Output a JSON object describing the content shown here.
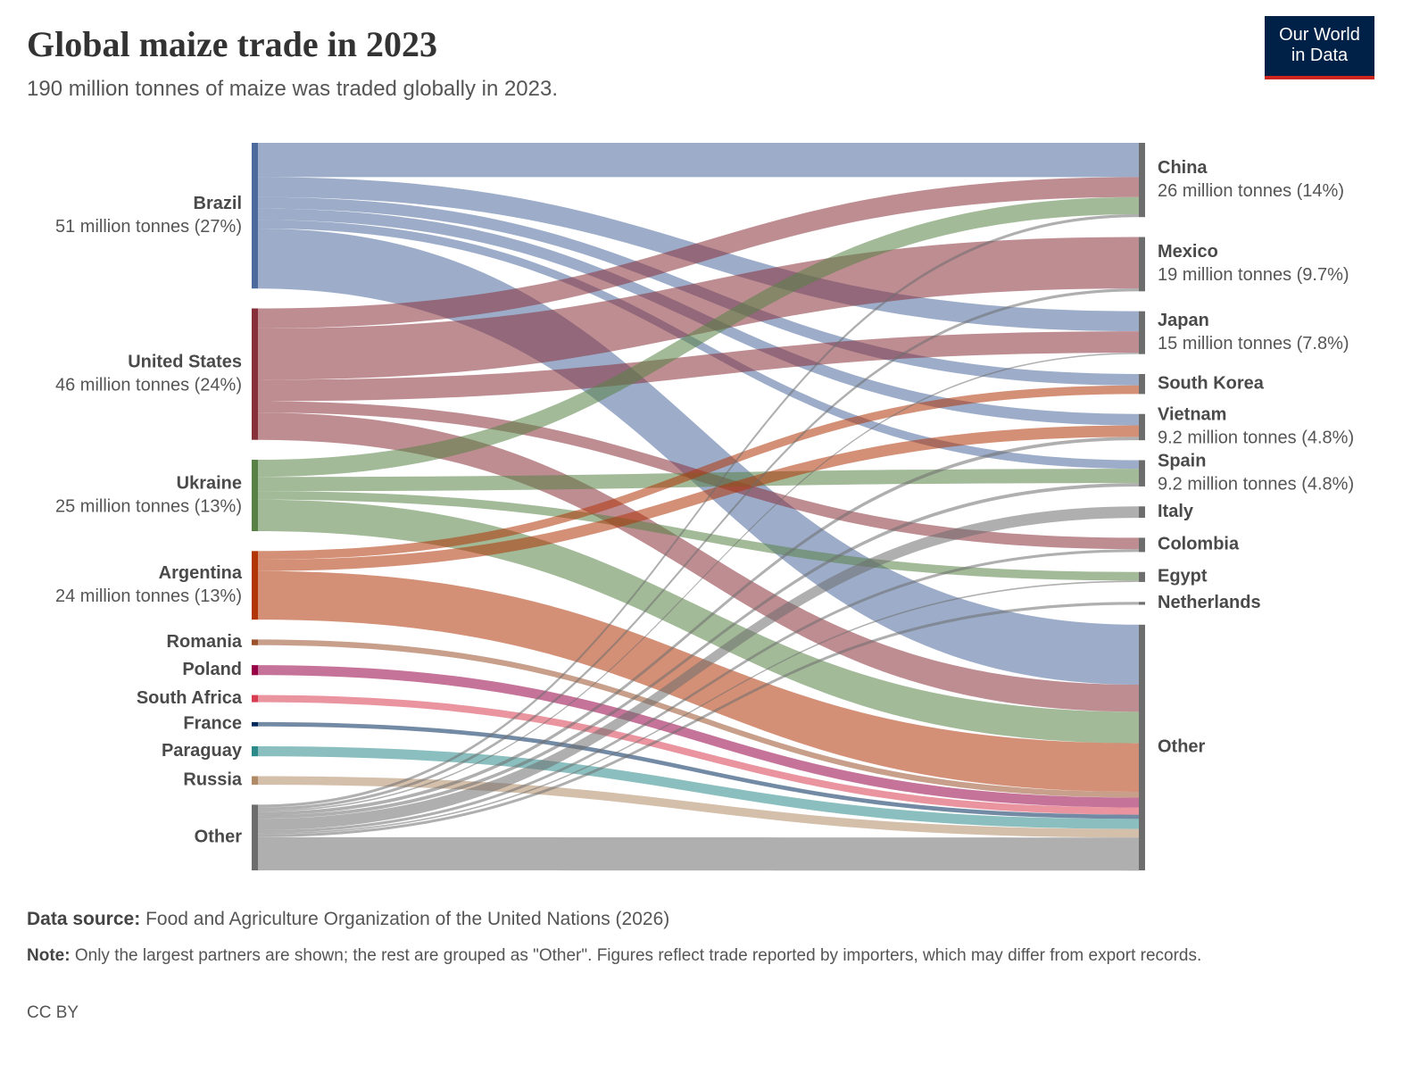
{
  "header": {
    "title": "Global maize trade in 2023",
    "subtitle": "190 million tonnes of maize was traded globally in 2023.",
    "logo": [
      "Our World",
      "in Data"
    ]
  },
  "chart_data": {
    "type": "sankey",
    "target_color": "#6d6d6d",
    "sources": [
      {
        "name": "Brazil",
        "value": 51,
        "value_label": "51 million tonnes (27%)",
        "color": "#4c6a9c",
        "flows": [
          {
            "to": "China",
            "value": 12
          },
          {
            "to": "Japan",
            "value": 7
          },
          {
            "to": "South Korea",
            "value": 4
          },
          {
            "to": "Vietnam",
            "value": 4
          },
          {
            "to": "Spain",
            "value": 3
          },
          {
            "to": "Other",
            "value": 21
          }
        ]
      },
      {
        "name": "United States",
        "value": 46,
        "value_label": "46 million tonnes (24%)",
        "color": "#883039",
        "flows": [
          {
            "to": "China",
            "value": 7
          },
          {
            "to": "Mexico",
            "value": 18
          },
          {
            "to": "Japan",
            "value": 7.5
          },
          {
            "to": "Colombia",
            "value": 4
          },
          {
            "to": "Other",
            "value": 9.5
          }
        ]
      },
      {
        "name": "Ukraine",
        "value": 25,
        "value_label": "25 million tonnes (13%)",
        "color": "#578145",
        "flows": [
          {
            "to": "China",
            "value": 6
          },
          {
            "to": "Spain",
            "value": 5
          },
          {
            "to": "Egypt",
            "value": 3
          },
          {
            "to": "Other",
            "value": 11
          }
        ]
      },
      {
        "name": "Argentina",
        "value": 24,
        "value_label": "24 million tonnes (13%)",
        "color": "#b13507",
        "flows": [
          {
            "to": "South Korea",
            "value": 3
          },
          {
            "to": "Vietnam",
            "value": 4
          },
          {
            "to": "Other",
            "value": 17
          }
        ]
      },
      {
        "name": "Romania",
        "value": 2,
        "color": "#9a5129",
        "flows": [
          {
            "to": "Other",
            "value": 2
          }
        ]
      },
      {
        "name": "Poland",
        "value": 3.5,
        "color": "#970046",
        "flows": [
          {
            "to": "Other",
            "value": 3.5
          }
        ]
      },
      {
        "name": "South Africa",
        "value": 2.5,
        "color": "#d73c50",
        "flows": [
          {
            "to": "Other",
            "value": 2.5
          }
        ]
      },
      {
        "name": "France",
        "value": 1.5,
        "color": "#00295b",
        "flows": [
          {
            "to": "Other",
            "value": 1.5
          }
        ]
      },
      {
        "name": "Paraguay",
        "value": 3.5,
        "color": "#2c8a8a",
        "flows": [
          {
            "to": "Other",
            "value": 3.5
          }
        ]
      },
      {
        "name": "Russia",
        "value": 3,
        "color": "#b08a64",
        "flows": [
          {
            "to": "Other",
            "value": 3
          }
        ]
      },
      {
        "name": "Other",
        "value": 23,
        "color": "#6d6d6d",
        "flows": [
          {
            "to": "China",
            "value": 1
          },
          {
            "to": "Mexico",
            "value": 1
          },
          {
            "to": "Japan",
            "value": 0.5
          },
          {
            "to": "Vietnam",
            "value": 1.2
          },
          {
            "to": "Spain",
            "value": 1.2
          },
          {
            "to": "Italy",
            "value": 4
          },
          {
            "to": "Colombia",
            "value": 1
          },
          {
            "to": "Egypt",
            "value": 0.5
          },
          {
            "to": "Netherlands",
            "value": 1
          },
          {
            "to": "Other",
            "value": 11.6
          }
        ]
      }
    ],
    "targets": [
      {
        "name": "China",
        "value": 26,
        "value_label": "26 million tonnes (14%)"
      },
      {
        "name": "Mexico",
        "value": 19,
        "value_label": "19 million tonnes (9.7%)"
      },
      {
        "name": "Japan",
        "value": 15,
        "value_label": "15 million tonnes (7.8%)"
      },
      {
        "name": "South Korea",
        "value": 7
      },
      {
        "name": "Vietnam",
        "value": 9.2,
        "value_label": "9.2 million tonnes (4.8%)"
      },
      {
        "name": "Spain",
        "value": 9.2,
        "value_label": "9.2 million tonnes (4.8%)"
      },
      {
        "name": "Italy",
        "value": 4
      },
      {
        "name": "Colombia",
        "value": 5
      },
      {
        "name": "Egypt",
        "value": 3.5
      },
      {
        "name": "Netherlands",
        "value": 1
      },
      {
        "name": "Other",
        "value": 86
      }
    ]
  },
  "footer": {
    "source_label": "Data source:",
    "source": "Food and Agriculture Organization of the United Nations (2026)",
    "note_label": "Note:",
    "note": "Only the largest partners are shown; the rest are grouped as \"Other\". Figures reflect trade reported by importers, which may differ from export records.",
    "license": "CC BY"
  }
}
